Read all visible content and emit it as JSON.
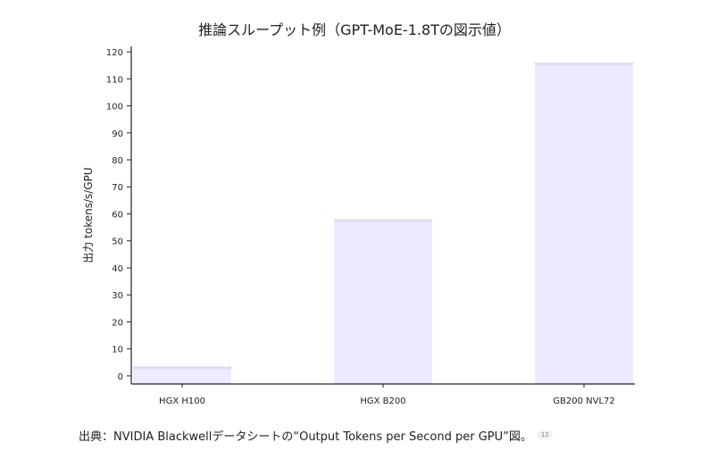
{
  "colors": {
    "bar_fill": "#ecebff",
    "bar_top": "#dcdbf6",
    "axis": "#222222",
    "text": "#222222"
  },
  "chart_data": {
    "type": "bar",
    "title": "推論スループット例（GPT-MoE-1.8Tの図示値）",
    "xlabel": "",
    "ylabel": "出力 tokens/s/GPU",
    "categories": [
      "HGX H100",
      "HGX B200",
      "GB200 NVL72"
    ],
    "values": [
      3.5,
      58,
      116
    ],
    "ylim": [
      -3,
      122
    ],
    "yticks": [
      0,
      10,
      20,
      30,
      40,
      50,
      60,
      70,
      80,
      90,
      100,
      110,
      120
    ],
    "grid": false,
    "legend": "none"
  },
  "caption": {
    "text": "出典：NVIDIA Blackwellデータシートの“Output Tokens per Second per GPU”図。",
    "badge": "12"
  }
}
